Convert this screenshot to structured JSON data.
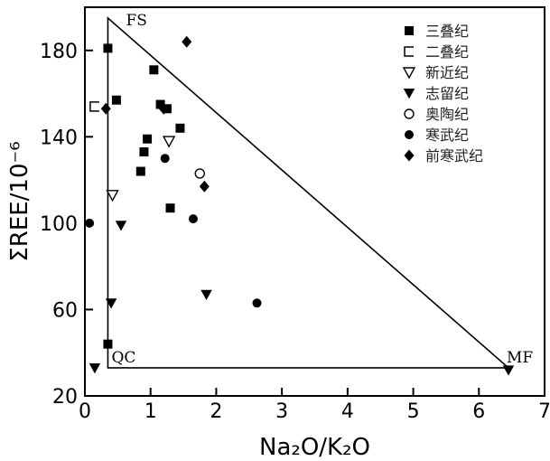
{
  "chart_data": {
    "type": "scatter",
    "xlabel": "Na₂O/K₂O",
    "ylabel": "ΣREE/10⁻⁶",
    "xlim": [
      0,
      7
    ],
    "ylim": [
      20,
      200
    ],
    "xticks": [
      0,
      1,
      2,
      3,
      4,
      5,
      6,
      7
    ],
    "yticks": [
      20,
      60,
      100,
      140,
      180
    ],
    "grid": false,
    "legend_position": "top-right",
    "triangle": {
      "vertices": [
        {
          "label": "FS",
          "x": 0.35,
          "y": 195
        },
        {
          "label": "QC",
          "x": 0.35,
          "y": 33
        },
        {
          "label": "MF",
          "x": 6.45,
          "y": 33
        }
      ]
    },
    "series": [
      {
        "name": "三叠纪",
        "marker": "square",
        "points": [
          [
            0.35,
            181
          ],
          [
            0.48,
            157
          ],
          [
            0.35,
            44
          ],
          [
            1.05,
            171
          ],
          [
            1.15,
            155
          ],
          [
            1.25,
            153
          ],
          [
            0.95,
            139
          ],
          [
            0.9,
            133
          ],
          [
            0.85,
            124
          ],
          [
            1.45,
            144
          ],
          [
            1.3,
            107
          ]
        ]
      },
      {
        "name": "二叠纪",
        "marker": "bracket",
        "points": [
          [
            0.15,
            154
          ]
        ]
      },
      {
        "name": "新近纪",
        "marker": "triangle-down-open",
        "points": [
          [
            0.42,
            113
          ],
          [
            1.28,
            138
          ]
        ]
      },
      {
        "name": "志留纪",
        "marker": "triangle-down",
        "points": [
          [
            0.15,
            33
          ],
          [
            0.4,
            63
          ],
          [
            0.55,
            99
          ],
          [
            1.85,
            67
          ],
          [
            6.45,
            32
          ]
        ]
      },
      {
        "name": "奥陶纪",
        "marker": "circle-open",
        "points": [
          [
            1.75,
            123
          ]
        ]
      },
      {
        "name": "寒武纪",
        "marker": "circle",
        "points": [
          [
            1.22,
            130
          ],
          [
            1.65,
            102
          ],
          [
            2.62,
            63
          ]
        ]
      },
      {
        "name": "前寒武纪",
        "marker": "diamond",
        "points": [
          [
            1.55,
            184
          ],
          [
            0.32,
            153
          ],
          [
            1.2,
            153
          ],
          [
            1.82,
            117
          ]
        ]
      }
    ],
    "extra_points": [
      {
        "marker": "circle",
        "x": 0.07,
        "y": 100
      }
    ]
  }
}
